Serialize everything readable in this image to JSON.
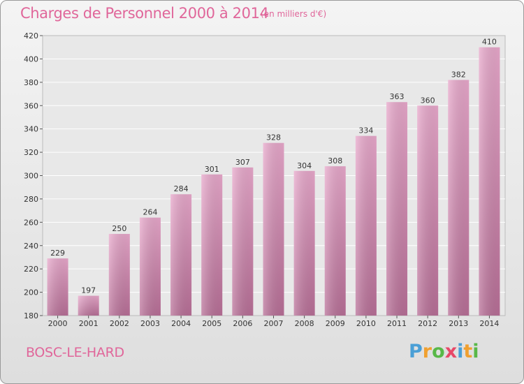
{
  "chart_data": {
    "type": "bar",
    "title": "Charges de Personnel 2000 à 2014",
    "subtitle": "(en milliers d'€)",
    "categories": [
      "2000",
      "2001",
      "2002",
      "2003",
      "2004",
      "2005",
      "2006",
      "2007",
      "2008",
      "2009",
      "2010",
      "2011",
      "2012",
      "2013",
      "2014"
    ],
    "values": [
      229,
      197,
      250,
      264,
      284,
      301,
      307,
      328,
      304,
      308,
      334,
      363,
      360,
      382,
      410
    ],
    "ylim": [
      180,
      420
    ],
    "yticks": [
      180,
      200,
      220,
      240,
      260,
      280,
      300,
      320,
      340,
      360,
      380,
      400,
      420
    ],
    "xlabel": "",
    "ylabel": "",
    "bar_color": "#d48fb6",
    "grid": true
  },
  "footer": {
    "commune": "BOSC-LE-HARD",
    "brand_letters": [
      "P",
      "r",
      "o",
      "x",
      "i",
      "t",
      "i"
    ],
    "brand_colors": [
      "#4a9fd6",
      "#f0a030",
      "#58b848",
      "#e84868",
      "#4a9fd6",
      "#f0a030",
      "#58b848"
    ]
  },
  "colors": {
    "title": "#e0669a"
  }
}
